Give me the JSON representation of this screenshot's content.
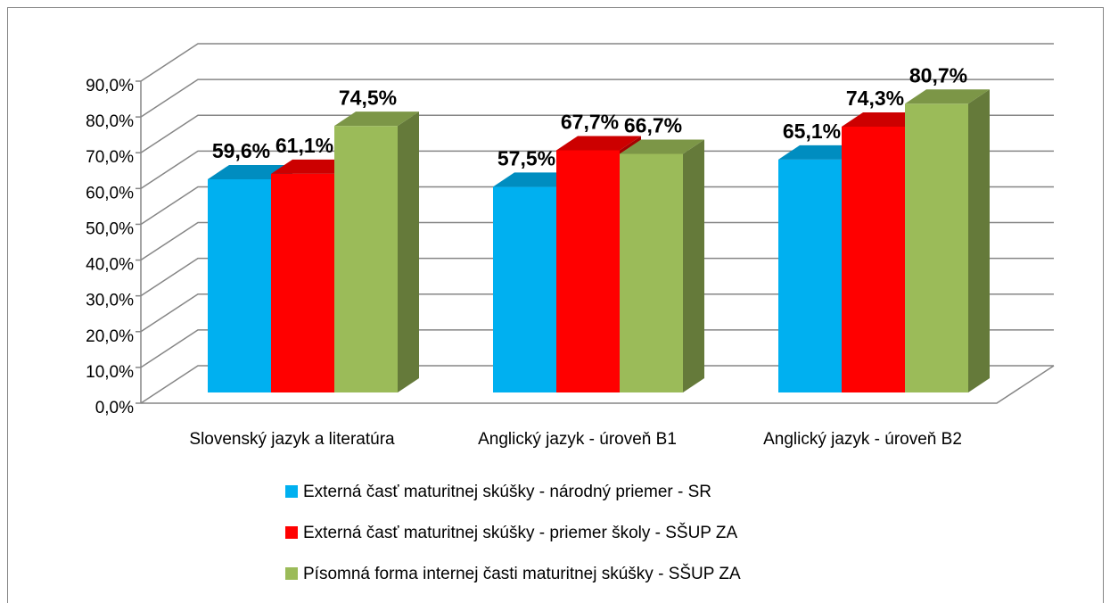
{
  "chart_data": {
    "type": "bar3d",
    "categories": [
      "Slovenský jazyk a literatúra",
      "Anglický jazyk - úroveň B1",
      "Anglický jazyk - úroveň B2"
    ],
    "series": [
      {
        "name": "Externá časť maturitnej skúšky - národný priemer - SR",
        "color": "#00b0f0",
        "values": [
          59.6,
          57.5,
          65.1
        ],
        "value_labels": [
          "59,6%",
          "57,5%",
          "65,1%"
        ]
      },
      {
        "name": "Externá časť maturitnej skúšky - priemer školy - SŠUP ZA",
        "color": "#ff0000",
        "values": [
          61.1,
          67.7,
          74.3
        ],
        "value_labels": [
          "61,1%",
          "67,7%",
          "74,3%"
        ]
      },
      {
        "name": "Písomná forma internej časti maturitnej skúšky - SŠUP ZA",
        "color": "#9bbb59",
        "values": [
          74.5,
          66.7,
          80.7
        ],
        "value_labels": [
          "74,5%",
          "66,7%",
          "80,7%"
        ]
      }
    ],
    "ylim": [
      0,
      90
    ],
    "yticks": [
      {
        "value": 0,
        "label": "0,0%"
      },
      {
        "value": 10,
        "label": "10,0%"
      },
      {
        "value": 20,
        "label": "20,0%"
      },
      {
        "value": 30,
        "label": "30,0%"
      },
      {
        "value": 40,
        "label": "40,0%"
      },
      {
        "value": 50,
        "label": "50,0%"
      },
      {
        "value": 60,
        "label": "60,0%"
      },
      {
        "value": 70,
        "label": "70,0%"
      },
      {
        "value": 80,
        "label": "80,0%"
      },
      {
        "value": 90,
        "label": "90,0%"
      }
    ],
    "grid": true,
    "legend": "bottom"
  }
}
